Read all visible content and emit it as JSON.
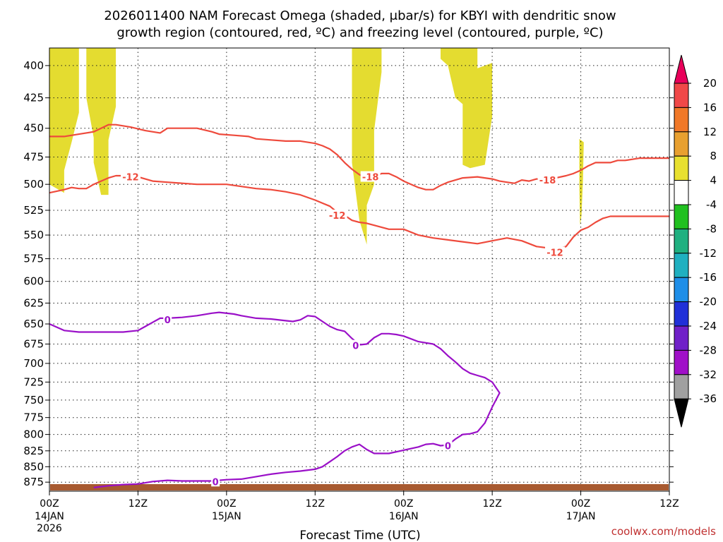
{
  "chart_data": {
    "type": "contour-timeheight",
    "title_line1": "2026011400 NAM Forecast Omega (shaded, μbar/s) for KBYI with dendritic snow",
    "title_line2": "growth region (contoured, red, ºC) and freezing level (contoured, purple, ºC)",
    "xlabel": "Forecast Time (UTC)",
    "credit": "coolwx.com/models",
    "x_range_hours": [
      0,
      84
    ],
    "y_range_hpa": [
      890,
      387
    ],
    "y_ticks": [
      400,
      425,
      450,
      475,
      500,
      525,
      550,
      575,
      600,
      625,
      650,
      675,
      700,
      725,
      750,
      775,
      800,
      825,
      850,
      875
    ],
    "x_ticks": [
      {
        "hour": 0,
        "label": "00Z",
        "date": "14JAN",
        "year": "2026"
      },
      {
        "hour": 12,
        "label": "12Z",
        "date": "",
        "year": ""
      },
      {
        "hour": 24,
        "label": "00Z",
        "date": "15JAN",
        "year": ""
      },
      {
        "hour": 36,
        "label": "12Z",
        "date": "",
        "year": ""
      },
      {
        "hour": 48,
        "label": "00Z",
        "date": "16JAN",
        "year": ""
      },
      {
        "hour": 60,
        "label": "12Z",
        "date": "",
        "year": ""
      },
      {
        "hour": 72,
        "label": "00Z",
        "date": "17JAN",
        "year": ""
      },
      {
        "hour": 84,
        "label": "12Z",
        "date": "",
        "year": ""
      }
    ],
    "colorbar": {
      "labels": [
        "20",
        "16",
        "12",
        "8",
        "4",
        "-4",
        "-8",
        "-12",
        "-16",
        "-20",
        "-24",
        "-28",
        "-32",
        "-36"
      ],
      "colors": [
        "#e8005a",
        "#f04848",
        "#f07828",
        "#e8a030",
        "#e8e030",
        "#ffffff",
        "#20c020",
        "#20b080",
        "#20b0c0",
        "#1e8ee8",
        "#2030d8",
        "#7020c8",
        "#a010c8",
        "#a0a0a0",
        "#000000"
      ]
    },
    "omega_regions": [
      {
        "name": "omega-region-1",
        "value_range": "4 to 8",
        "points": [
          [
            0,
            387
          ],
          [
            4,
            387
          ],
          [
            4,
            437
          ],
          [
            3,
            462
          ],
          [
            2,
            487
          ],
          [
            2,
            508
          ],
          [
            0,
            500
          ]
        ]
      },
      {
        "name": "omega-region-2",
        "value_range": "4 to 8",
        "points": [
          [
            5,
            387
          ],
          [
            9,
            387
          ],
          [
            9,
            432
          ],
          [
            8,
            460
          ],
          [
            8,
            510
          ],
          [
            7,
            510
          ],
          [
            6,
            480
          ],
          [
            6,
            458
          ],
          [
            5,
            425
          ]
        ]
      },
      {
        "name": "omega-region-3",
        "value_range": "4 to 8",
        "points": [
          [
            41,
            387
          ],
          [
            45,
            387
          ],
          [
            45,
            405
          ],
          [
            44,
            452
          ],
          [
            44,
            500
          ],
          [
            43,
            520
          ],
          [
            43,
            560
          ],
          [
            42,
            535
          ],
          [
            41,
            480
          ]
        ]
      },
      {
        "name": "omega-region-4",
        "value_range": "4 to 8",
        "points": [
          [
            53,
            387
          ],
          [
            58,
            387
          ],
          [
            58,
            402
          ],
          [
            60,
            398
          ],
          [
            60,
            440
          ],
          [
            59,
            482
          ],
          [
            57,
            485
          ],
          [
            56,
            482
          ],
          [
            56,
            430
          ],
          [
            55,
            425
          ],
          [
            54,
            400
          ],
          [
            53,
            395
          ]
        ]
      },
      {
        "name": "omega-region-5",
        "value_range": "4 to 8",
        "points": [
          [
            71.8,
            459
          ],
          [
            72.4,
            462
          ],
          [
            72.3,
            495
          ],
          [
            72.1,
            530
          ],
          [
            71.9,
            540
          ],
          [
            71.8,
            500
          ]
        ]
      }
    ],
    "isotherm_minus18": {
      "label": "-18",
      "label_positions": [
        [
          43.5,
          493
        ],
        [
          67.5,
          496
        ]
      ],
      "points": [
        [
          0,
          457
        ],
        [
          2,
          457
        ],
        [
          4,
          455
        ],
        [
          6,
          453
        ],
        [
          7,
          450
        ],
        [
          8,
          447
        ],
        [
          9,
          447
        ],
        [
          11,
          449
        ],
        [
          13,
          452
        ],
        [
          15,
          454
        ],
        [
          16,
          450
        ],
        [
          18,
          450
        ],
        [
          20,
          450
        ],
        [
          22,
          453
        ],
        [
          23,
          455
        ],
        [
          25,
          456
        ],
        [
          27,
          457
        ],
        [
          28,
          459
        ],
        [
          30,
          460
        ],
        [
          32,
          461
        ],
        [
          34,
          461
        ],
        [
          36,
          463
        ],
        [
          37,
          465
        ],
        [
          38,
          468
        ],
        [
          39,
          473
        ],
        [
          40,
          480
        ],
        [
          41,
          486
        ],
        [
          42,
          491
        ],
        [
          43,
          494
        ],
        [
          44,
          493
        ],
        [
          45,
          490
        ],
        [
          46,
          490
        ],
        [
          47,
          493
        ],
        [
          48,
          497
        ],
        [
          49,
          500
        ],
        [
          50,
          503
        ],
        [
          51,
          505
        ],
        [
          52,
          505
        ],
        [
          53,
          501
        ],
        [
          54,
          498
        ],
        [
          56,
          494
        ],
        [
          58,
          493
        ],
        [
          60,
          495
        ],
        [
          61,
          497
        ],
        [
          62,
          498
        ],
        [
          63,
          499
        ],
        [
          64,
          496
        ],
        [
          65,
          497
        ],
        [
          66,
          495
        ],
        [
          67,
          495
        ],
        [
          68,
          495
        ],
        [
          70,
          492
        ],
        [
          71,
          490
        ],
        [
          72,
          487
        ],
        [
          73,
          483
        ],
        [
          74,
          480
        ],
        [
          75,
          480
        ],
        [
          76,
          480
        ],
        [
          77,
          478
        ],
        [
          78,
          478
        ],
        [
          80,
          476
        ],
        [
          82,
          476
        ],
        [
          84,
          476
        ]
      ]
    },
    "isotherm_minus12": {
      "label": "-12",
      "label_positions": [
        [
          11,
          493
        ],
        [
          39,
          530
        ],
        [
          68.5,
          568
        ]
      ],
      "points": [
        [
          0,
          508
        ],
        [
          2,
          505
        ],
        [
          3,
          503
        ],
        [
          4,
          504
        ],
        [
          5,
          504
        ],
        [
          6,
          500
        ],
        [
          7,
          497
        ],
        [
          8,
          494
        ],
        [
          9,
          492
        ],
        [
          10,
          492
        ],
        [
          12,
          493
        ],
        [
          14,
          497
        ],
        [
          16,
          498
        ],
        [
          18,
          499
        ],
        [
          20,
          500
        ],
        [
          22,
          500
        ],
        [
          24,
          500
        ],
        [
          26,
          502
        ],
        [
          28,
          504
        ],
        [
          30,
          505
        ],
        [
          32,
          507
        ],
        [
          34,
          510
        ],
        [
          36,
          515
        ],
        [
          37,
          518
        ],
        [
          38,
          521
        ],
        [
          39,
          527
        ],
        [
          40,
          530
        ],
        [
          41,
          535
        ],
        [
          42,
          537
        ],
        [
          43,
          538
        ],
        [
          44,
          540
        ],
        [
          46,
          544
        ],
        [
          48,
          544
        ],
        [
          50,
          550
        ],
        [
          52,
          553
        ],
        [
          54,
          555
        ],
        [
          56,
          557
        ],
        [
          58,
          559
        ],
        [
          60,
          556
        ],
        [
          62,
          553
        ],
        [
          64,
          556
        ],
        [
          66,
          562
        ],
        [
          68,
          564
        ],
        [
          69,
          564
        ],
        [
          70,
          562
        ],
        [
          71,
          552
        ],
        [
          72,
          545
        ],
        [
          73,
          542
        ],
        [
          74,
          537
        ],
        [
          75,
          533
        ],
        [
          76,
          531
        ],
        [
          78,
          531
        ],
        [
          80,
          531
        ],
        [
          82,
          531
        ],
        [
          84,
          531
        ]
      ]
    },
    "isotherm_0": {
      "label": "0",
      "label_positions": [
        [
          16,
          645
        ],
        [
          41.5,
          677
        ],
        [
          54,
          817
        ],
        [
          22.5,
          874
        ]
      ],
      "points": [
        [
          0,
          650
        ],
        [
          2,
          658
        ],
        [
          4,
          660
        ],
        [
          6,
          660
        ],
        [
          8,
          660
        ],
        [
          10,
          660
        ],
        [
          12,
          658
        ],
        [
          13,
          653
        ],
        [
          14,
          648
        ],
        [
          15,
          643
        ],
        [
          16,
          643
        ],
        [
          18,
          642
        ],
        [
          20,
          640
        ],
        [
          22,
          637
        ],
        [
          23,
          636
        ],
        [
          25,
          638
        ],
        [
          26,
          640
        ],
        [
          28,
          643
        ],
        [
          30,
          644
        ],
        [
          32,
          646
        ],
        [
          33,
          647
        ],
        [
          34,
          645
        ],
        [
          35,
          640
        ],
        [
          36,
          641
        ],
        [
          37,
          647
        ],
        [
          38,
          653
        ],
        [
          39,
          657
        ],
        [
          40,
          659
        ],
        [
          41,
          668
        ],
        [
          42,
          676
        ],
        [
          43,
          675
        ],
        [
          44,
          667
        ],
        [
          45,
          662
        ],
        [
          46,
          662
        ],
        [
          47,
          663
        ],
        [
          48,
          665
        ],
        [
          50,
          672
        ],
        [
          52,
          675
        ],
        [
          53,
          681
        ],
        [
          54,
          690
        ],
        [
          55,
          698
        ],
        [
          56,
          707
        ],
        [
          57,
          713
        ],
        [
          58,
          716
        ],
        [
          59,
          719
        ],
        [
          60,
          725
        ],
        [
          61,
          740
        ],
        [
          60,
          760
        ],
        [
          59,
          783
        ],
        [
          58,
          796
        ],
        [
          57,
          799
        ],
        [
          56,
          800
        ],
        [
          55,
          807
        ],
        [
          54,
          816
        ],
        [
          53,
          817
        ],
        [
          52,
          814
        ],
        [
          51,
          815
        ],
        [
          50,
          819
        ],
        [
          48,
          824
        ],
        [
          46,
          829
        ],
        [
          44,
          829
        ],
        [
          43,
          823
        ],
        [
          42,
          815
        ],
        [
          41,
          819
        ],
        [
          40,
          825
        ],
        [
          39,
          834
        ],
        [
          38,
          842
        ],
        [
          37,
          850
        ],
        [
          36,
          854
        ],
        [
          34,
          857
        ],
        [
          32,
          859
        ],
        [
          30,
          862
        ],
        [
          28,
          866
        ],
        [
          26,
          870
        ],
        [
          24,
          871
        ],
        [
          22,
          873
        ],
        [
          20,
          873
        ],
        [
          18,
          873
        ],
        [
          16,
          872
        ],
        [
          14,
          874
        ],
        [
          12,
          878
        ],
        [
          10,
          879
        ],
        [
          8,
          881
        ],
        [
          6,
          884
        ]
      ]
    }
  }
}
